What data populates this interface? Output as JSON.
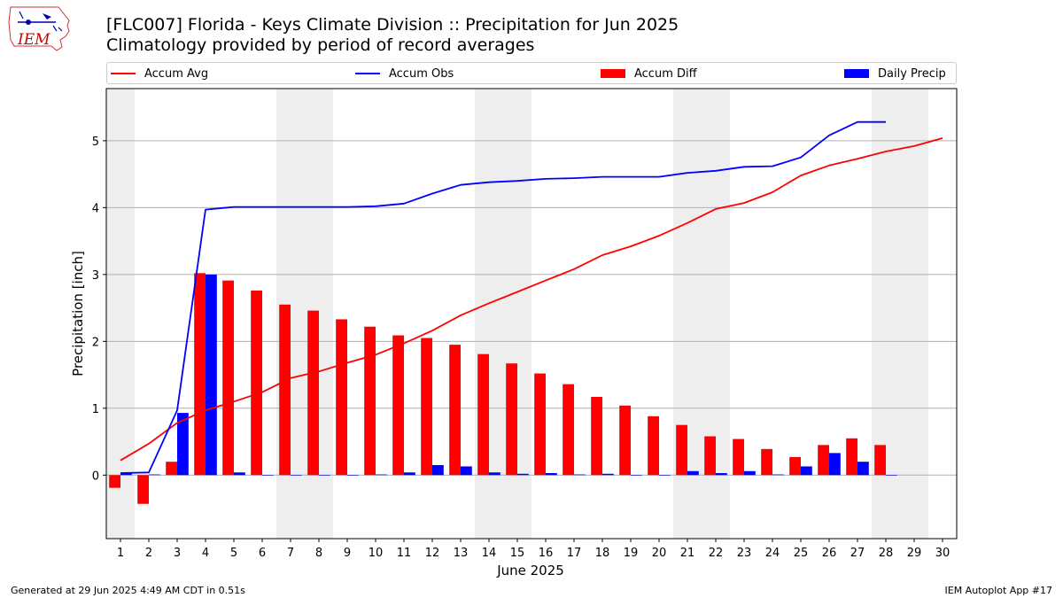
{
  "header": {
    "title_line1": "[FLC007] Florida - Keys Climate Division :: Precipitation for Jun 2025",
    "title_line2": "Climatology provided by period of record averages"
  },
  "logo": {
    "text": "IEM",
    "icon": "iowa-state-outline-icon"
  },
  "legend": [
    {
      "label": "Accum Avg",
      "kind": "line",
      "color": "#ff0000"
    },
    {
      "label": "Accum Obs",
      "kind": "line",
      "color": "#0000ff"
    },
    {
      "label": "Accum Diff",
      "kind": "bar",
      "color": "#ff0000"
    },
    {
      "label": "Daily Precip",
      "kind": "bar",
      "color": "#0000ff"
    }
  ],
  "footer": {
    "left": "Generated at 29 Jun 2025 4:49 AM CDT in 0.51s",
    "right": "IEM Autoplot App #17"
  },
  "chart_data": {
    "type": "bar",
    "xlabel": "June 2025",
    "ylabel": "Precipitation [inch]",
    "xlim": [
      0.5,
      30.5
    ],
    "ylim": [
      -0.95,
      5.78
    ],
    "yticks": [
      0,
      1,
      2,
      3,
      4,
      5
    ],
    "x": [
      1,
      2,
      3,
      4,
      5,
      6,
      7,
      8,
      9,
      10,
      11,
      12,
      13,
      14,
      15,
      16,
      17,
      18,
      19,
      20,
      21,
      22,
      23,
      24,
      25,
      26,
      27,
      28,
      29,
      30
    ],
    "weekend_days": [
      1,
      7,
      8,
      14,
      15,
      21,
      22,
      28,
      29
    ],
    "grid": "y",
    "series": [
      {
        "name": "Accum Avg",
        "kind": "line",
        "color": "#ff0000",
        "values": [
          0.22,
          0.47,
          0.78,
          0.97,
          1.1,
          1.24,
          1.45,
          1.55,
          1.68,
          1.8,
          1.97,
          2.16,
          2.39,
          2.57,
          2.74,
          2.91,
          3.08,
          3.29,
          3.42,
          3.58,
          3.77,
          3.98,
          4.07,
          4.23,
          4.48,
          4.63,
          4.73,
          4.84,
          4.92,
          5.04
        ]
      },
      {
        "name": "Accum Obs",
        "kind": "line",
        "color": "#0000ff",
        "values": [
          0.03,
          0.04,
          0.97,
          3.97,
          4.01,
          4.01,
          4.01,
          4.01,
          4.01,
          4.02,
          4.06,
          4.21,
          4.34,
          4.38,
          4.4,
          4.43,
          4.44,
          4.46,
          4.46,
          4.46,
          4.52,
          4.55,
          4.61,
          4.62,
          4.75,
          5.08,
          5.28,
          5.28,
          null,
          null
        ]
      },
      {
        "name": "Accum Diff",
        "kind": "bar",
        "color": "#ff0000",
        "values": [
          -0.19,
          -0.43,
          0.2,
          3.02,
          2.91,
          2.76,
          2.55,
          2.46,
          2.33,
          2.22,
          2.09,
          2.05,
          1.95,
          1.81,
          1.67,
          1.52,
          1.36,
          1.17,
          1.04,
          0.88,
          0.75,
          0.58,
          0.54,
          0.39,
          0.27,
          0.45,
          0.55,
          0.45,
          null,
          null
        ]
      },
      {
        "name": "Daily Precip",
        "kind": "bar",
        "color": "#0000ff",
        "values": [
          0.03,
          0.01,
          0.93,
          3.0,
          0.04,
          0.0,
          0.0,
          0.0,
          0.0,
          0.01,
          0.04,
          0.15,
          0.13,
          0.04,
          0.02,
          0.03,
          0.01,
          0.02,
          0.0,
          0.0,
          0.06,
          0.03,
          0.06,
          0.01,
          0.13,
          0.33,
          0.2,
          0.0,
          null,
          null
        ]
      }
    ]
  }
}
